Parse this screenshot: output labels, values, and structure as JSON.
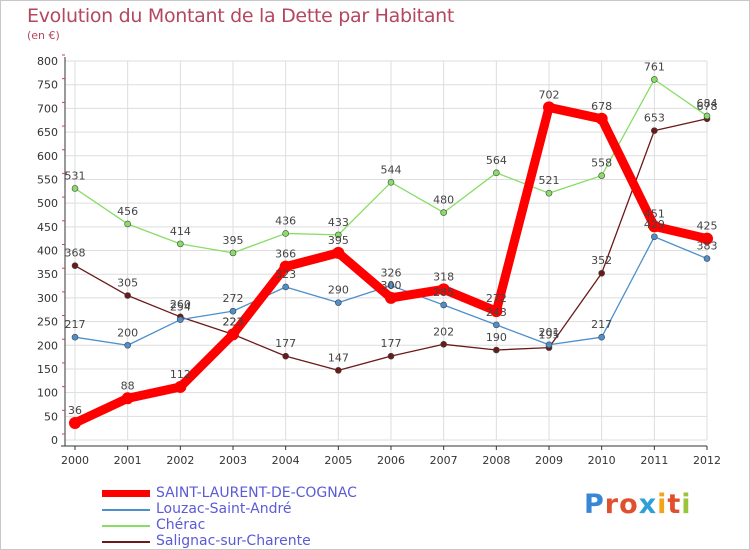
{
  "chart_data": {
    "type": "line",
    "title": "Evolution du Montant de la Dette par Habitant",
    "subtitle": "(en €)",
    "xlabel": "",
    "ylabel": "",
    "categories": [
      "2000",
      "2001",
      "2002",
      "2003",
      "2004",
      "2005",
      "2006",
      "2007",
      "2008",
      "2009",
      "2010",
      "2011",
      "2012"
    ],
    "ylim": [
      0,
      800
    ],
    "yticks": [
      0,
      50,
      100,
      150,
      200,
      250,
      300,
      350,
      400,
      450,
      500,
      550,
      600,
      650,
      700,
      750,
      800
    ],
    "grid": true,
    "legend_position": "bottom-left",
    "series": [
      {
        "name": "SAINT-LAURENT-DE-COGNAC",
        "color": "#ff0000",
        "values": [
          36,
          88,
          112,
          223,
          366,
          395,
          300,
          318,
          272,
          702,
          678,
          451,
          425
        ]
      },
      {
        "name": "Louzac-Saint-André",
        "color": "#4d8fcc",
        "values": [
          217,
          200,
          254,
          272,
          323,
          290,
          326,
          285,
          243,
          201,
          217,
          429,
          383
        ]
      },
      {
        "name": "Chérac",
        "color": "#88dd66",
        "values": [
          531,
          456,
          414,
          395,
          436,
          433,
          544,
          480,
          564,
          521,
          558,
          761,
          684
        ]
      },
      {
        "name": "Salignac-sur-Charente",
        "color": "#6b1a1a",
        "values": [
          368,
          305,
          260,
          223,
          177,
          147,
          177,
          202,
          190,
          195,
          352,
          653,
          678
        ]
      }
    ]
  },
  "legend": {
    "items": [
      {
        "label": "SAINT-LAURENT-DE-COGNAC",
        "color": "#ff0000"
      },
      {
        "label": "Louzac-Saint-André",
        "color": "#4d8fcc"
      },
      {
        "label": "Chérac",
        "color": "#88dd66"
      },
      {
        "label": "Salignac-sur-Charente",
        "color": "#6b1a1a"
      }
    ]
  },
  "logo": {
    "text": "Proxiti"
  }
}
